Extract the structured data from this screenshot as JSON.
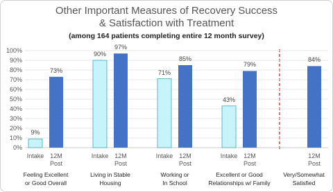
{
  "chart_data": {
    "type": "bar",
    "title": [
      "Other Important Measures of Recovery Success",
      "& Satisfaction with Treatment"
    ],
    "subtitle": "(among 164 patients completing entire 12 month survey)",
    "categories": [
      [
        "Feeling Excellent",
        "or Good Overall"
      ],
      [
        "Living in Stable",
        "Housing"
      ],
      [
        "Working or",
        "In School"
      ],
      [
        "Excellent or Good",
        "Relationships w/ Family"
      ],
      [
        "Very/Somewhat",
        "Satisfied"
      ]
    ],
    "series": [
      {
        "name": "Intake",
        "color": "#c6f4fa",
        "values": [
          9,
          90,
          71,
          43,
          null
        ],
        "value_labels": [
          "9%",
          "90%",
          "71%",
          "43%",
          null
        ]
      },
      {
        "name": "12M Post",
        "color": "#4472c4",
        "values": [
          73,
          97,
          85,
          79,
          84
        ],
        "value_labels": [
          "73%",
          "97%",
          "85%",
          "79%",
          "84%"
        ]
      }
    ],
    "ylim": [
      0,
      100
    ],
    "yticks": [
      {
        "value": 0,
        "label": "0%"
      },
      {
        "value": 10,
        "label": "10%"
      },
      {
        "value": 20,
        "label": "20%"
      },
      {
        "value": 30,
        "label": "30%"
      },
      {
        "value": 40,
        "label": "40%"
      },
      {
        "value": 50,
        "label": "50%"
      },
      {
        "value": 60,
        "label": "60%"
      },
      {
        "value": 70,
        "label": "70%"
      },
      {
        "value": 80,
        "label": "80%"
      },
      {
        "value": 90,
        "label": "90%"
      },
      {
        "value": 100,
        "label": "100%"
      }
    ],
    "grid": true
  }
}
